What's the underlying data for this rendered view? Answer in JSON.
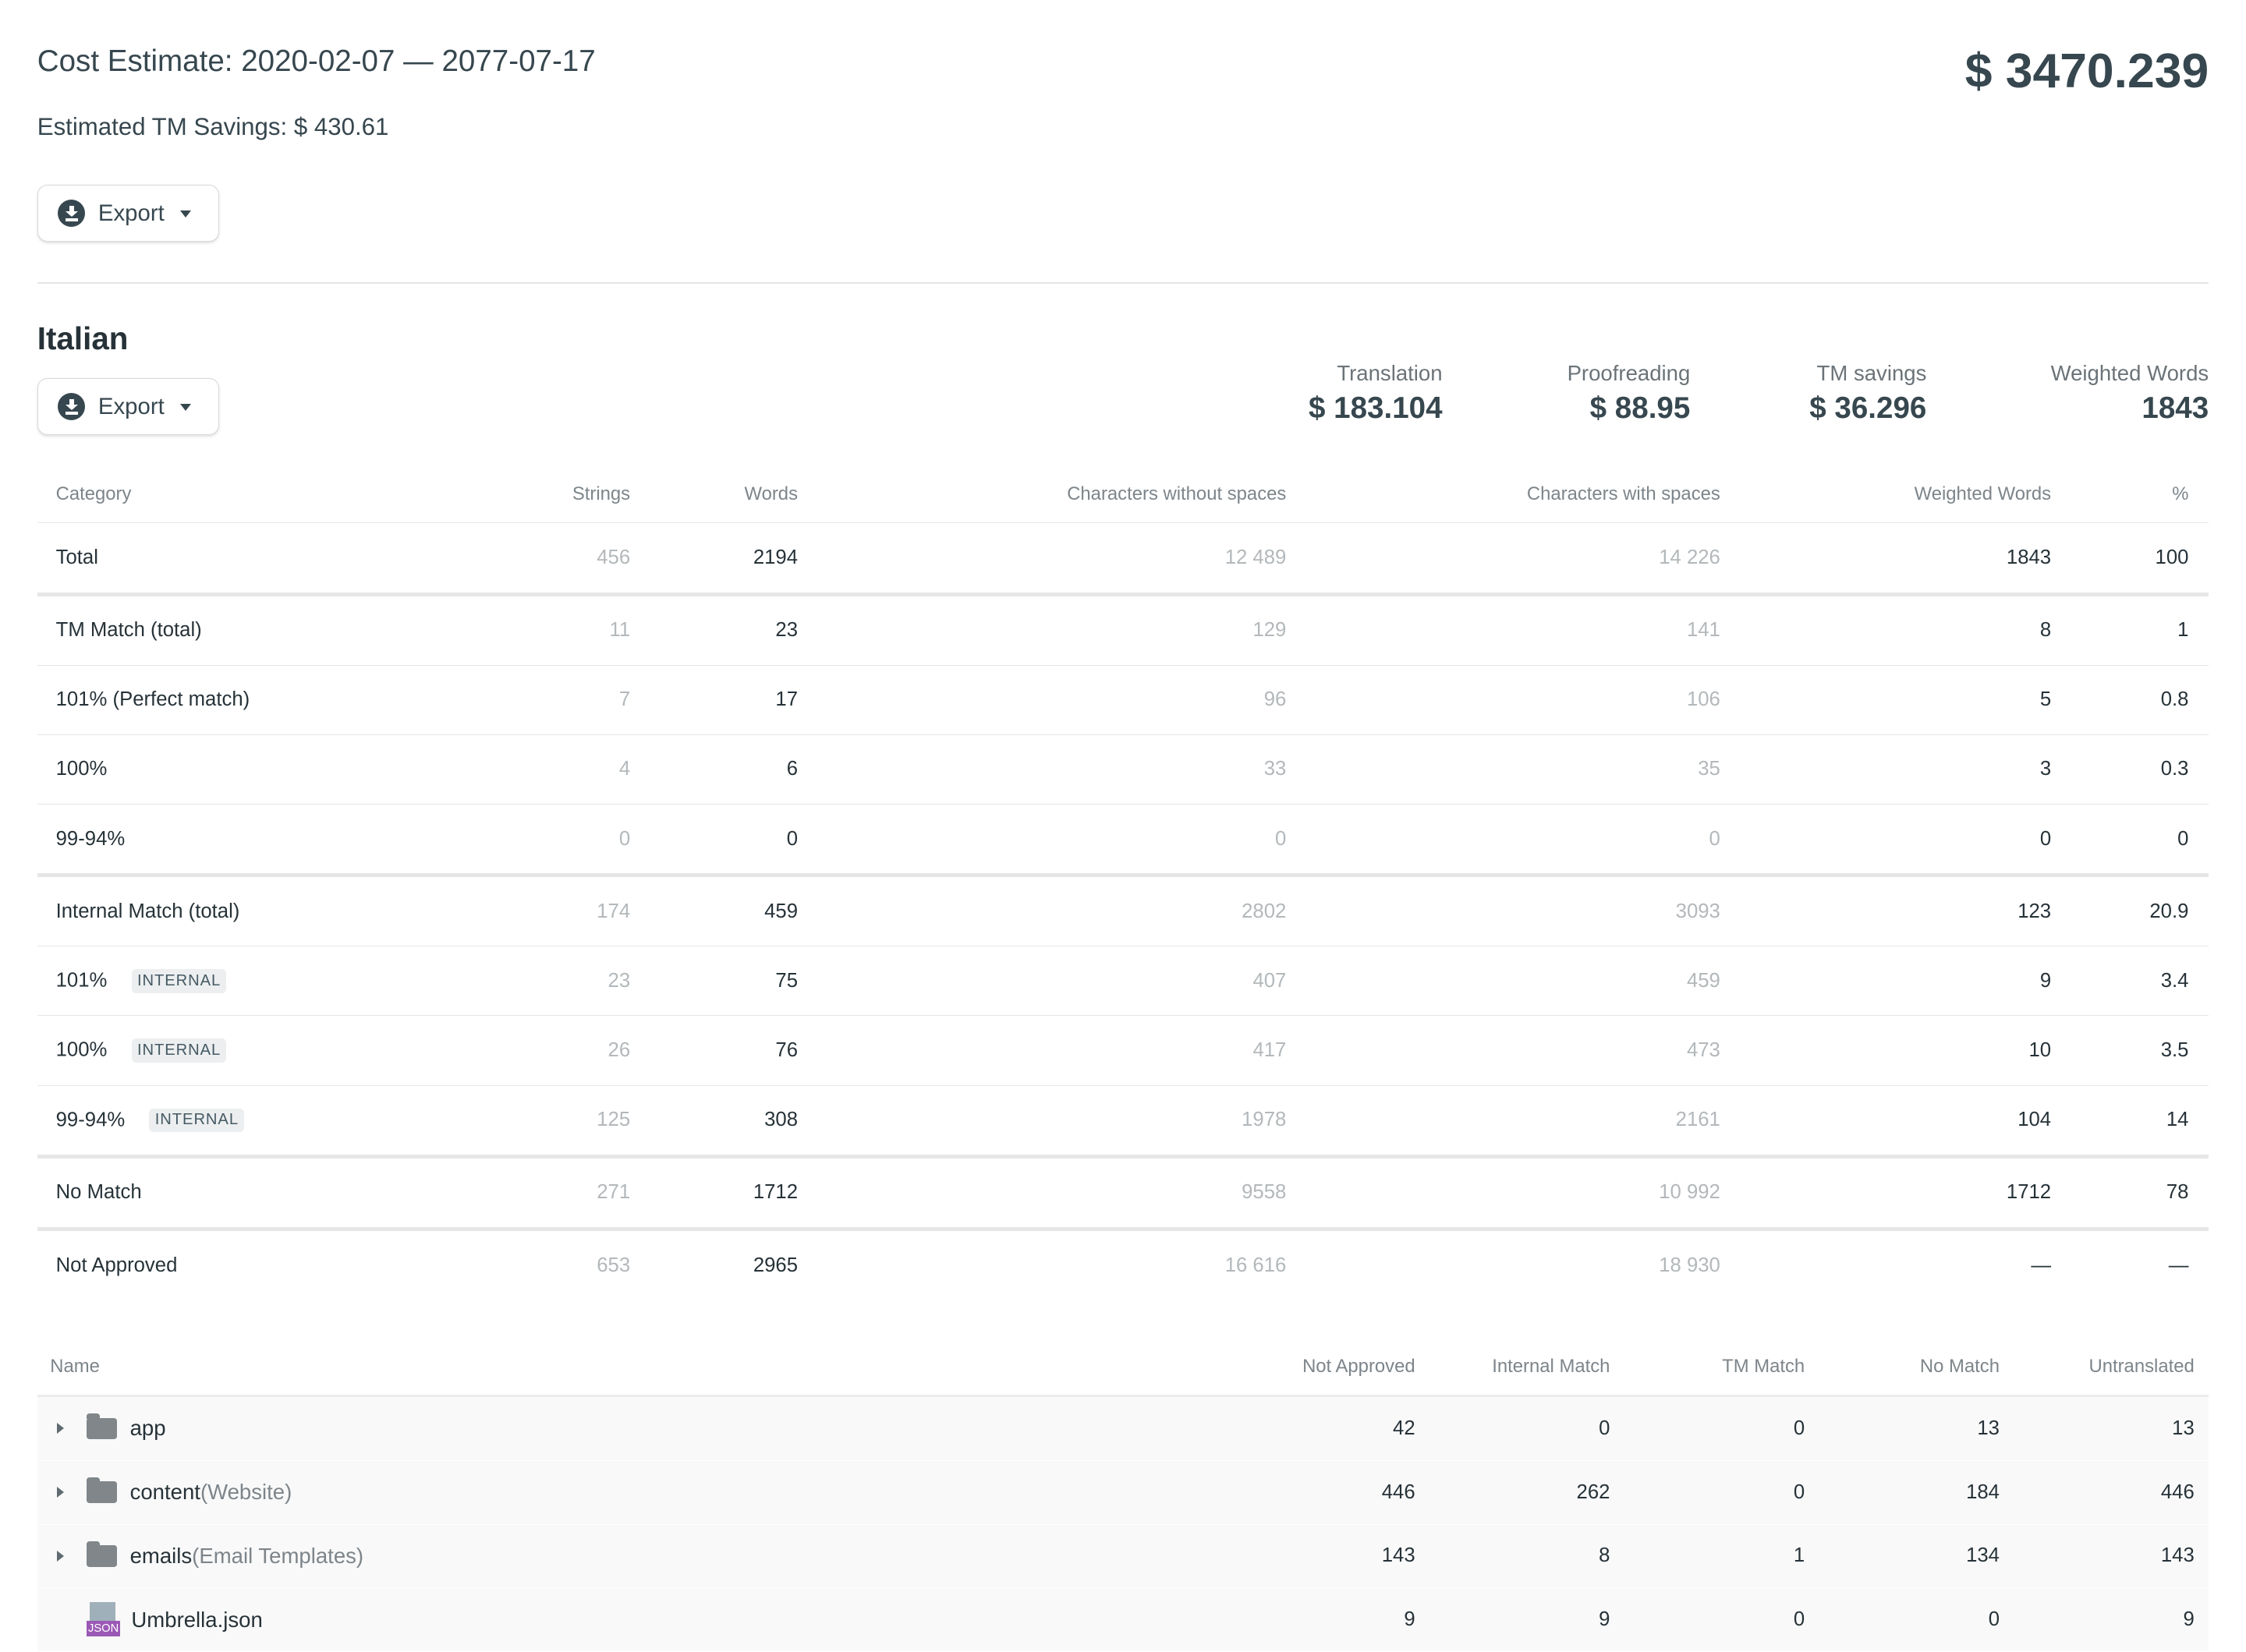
{
  "header": {
    "title": "Cost Estimate: 2020-02-07 — 2077-07-17",
    "savings": "Estimated TM Savings: $ 430.61",
    "total": "$ 3470.239",
    "export_label": "Export"
  },
  "language": {
    "name": "Italian",
    "export_label": "Export",
    "stats": [
      {
        "label": "Translation",
        "value": "$ 183.104"
      },
      {
        "label": "Proofreading",
        "value": "$ 88.95"
      },
      {
        "label": "TM savings",
        "value": "$ 36.296"
      },
      {
        "label": "Weighted Words",
        "value": "1843"
      }
    ],
    "columns": [
      "Category",
      "Strings",
      "Words",
      "Characters without spaces",
      "Characters with spaces",
      "Weighted Words",
      "%"
    ],
    "rows": [
      {
        "category": "Total",
        "badge": "",
        "cells": [
          "456",
          "2194",
          "12 489",
          "14 226",
          "1843",
          "100"
        ],
        "sep": true
      },
      {
        "category": "TM Match (total)",
        "badge": "",
        "cells": [
          "11",
          "23",
          "129",
          "141",
          "8",
          "1"
        ]
      },
      {
        "category": "101% (Perfect match)",
        "badge": "",
        "cells": [
          "7",
          "17",
          "96",
          "106",
          "5",
          "0.8"
        ]
      },
      {
        "category": "100%",
        "badge": "",
        "cells": [
          "4",
          "6",
          "33",
          "35",
          "3",
          "0.3"
        ]
      },
      {
        "category": "99-94%",
        "badge": "",
        "cells": [
          "0",
          "0",
          "0",
          "0",
          "0",
          "0"
        ],
        "sep": true
      },
      {
        "category": "Internal Match (total)",
        "badge": "",
        "cells": [
          "174",
          "459",
          "2802",
          "3093",
          "123",
          "20.9"
        ]
      },
      {
        "category": "101%",
        "badge": "INTERNAL",
        "cells": [
          "23",
          "75",
          "407",
          "459",
          "9",
          "3.4"
        ]
      },
      {
        "category": "100%",
        "badge": "INTERNAL",
        "cells": [
          "26",
          "76",
          "417",
          "473",
          "10",
          "3.5"
        ]
      },
      {
        "category": "99-94%",
        "badge": "INTERNAL",
        "cells": [
          "125",
          "308",
          "1978",
          "2161",
          "104",
          "14"
        ],
        "sep": true
      },
      {
        "category": "No Match",
        "badge": "",
        "cells": [
          "271",
          "1712",
          "9558",
          "10 992",
          "1712",
          "78"
        ],
        "sep": true
      },
      {
        "category": "Not Approved",
        "badge": "",
        "cells": [
          "653",
          "2965",
          "16 616",
          "18 930",
          "—",
          "—"
        ],
        "last": true
      }
    ]
  },
  "files": {
    "columns": [
      "Name",
      "Not Approved",
      "Internal Match",
      "TM Match",
      "No Match",
      "Untranslated"
    ],
    "rows": [
      {
        "type": "folder",
        "icon": "folder-icon",
        "name": "app",
        "sub": "",
        "cells": [
          "42",
          "0",
          "0",
          "13",
          "13"
        ]
      },
      {
        "type": "folder",
        "icon": "folder-icon",
        "name": "content",
        "sub": "(Website)",
        "cells": [
          "446",
          "262",
          "0",
          "184",
          "446"
        ]
      },
      {
        "type": "folder",
        "icon": "folder-icon",
        "name": "emails",
        "sub": "(Email Templates)",
        "cells": [
          "143",
          "8",
          "1",
          "134",
          "143"
        ]
      },
      {
        "type": "file",
        "icon": "json-file-icon",
        "name": "Umbrella.json",
        "sub": "",
        "badge": "JSON",
        "cells": [
          "9",
          "9",
          "0",
          "0",
          "9"
        ]
      }
    ]
  },
  "colors": {
    "text": "#37474f",
    "muted": "#b3b8bb",
    "json_badge": "#9b59b6",
    "folder": "#80868a"
  }
}
